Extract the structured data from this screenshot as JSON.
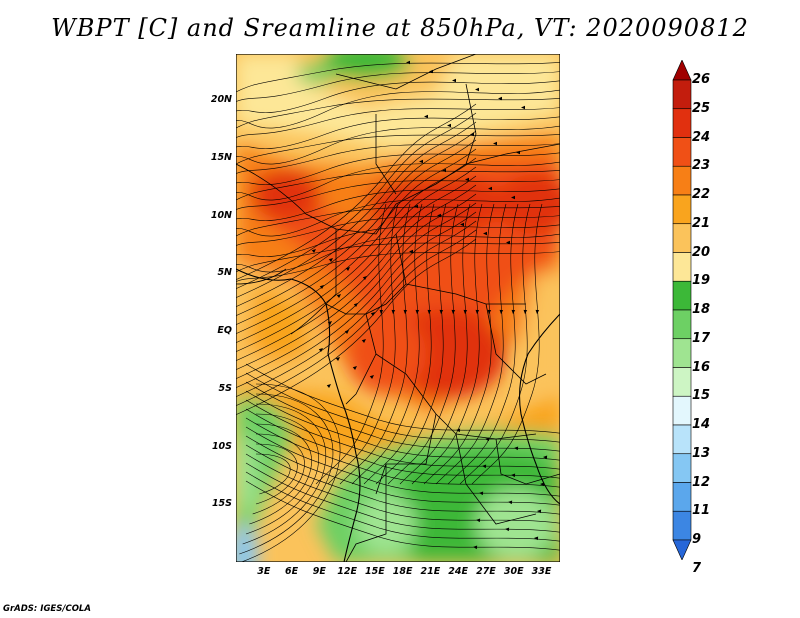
{
  "title": "WBPT [C] and Sreamline at 850hPa, VT: 2020090812",
  "credit": "GrADS: IGES/COLA",
  "map": {
    "lon_range": [
      0,
      35
    ],
    "lat_range": [
      -20,
      24
    ],
    "lat_ticks": [
      "20N",
      "15N",
      "10N",
      "5N",
      "EQ",
      "5S",
      "10S",
      "15S"
    ],
    "lon_ticks": [
      "3E",
      "6E",
      "9E",
      "12E",
      "15E",
      "18E",
      "21E",
      "24E",
      "27E",
      "30E",
      "33E"
    ],
    "field": "Wet-bulb potential temperature at 850hPa with streamlines",
    "regions": [
      {
        "zone": "northern Sahel",
        "wbpt_c": 20
      },
      {
        "zone": "central belt 5N-15N",
        "wbpt_c": 23
      },
      {
        "zone": "Congo basin",
        "wbpt_c": 23
      },
      {
        "zone": "southern Africa",
        "wbpt_c": 17
      }
    ]
  },
  "colorbar": {
    "labels": [
      "26",
      "25",
      "24",
      "23",
      "22",
      "21",
      "20",
      "19",
      "18",
      "17",
      "16",
      "15",
      "14",
      "13",
      "12",
      "11",
      "9",
      "7"
    ],
    "colors": [
      "#a00000",
      "#c31d0d",
      "#e1300f",
      "#f05016",
      "#f77f16",
      "#f9a41e",
      "#fbc35b",
      "#fde797",
      "#3cb838",
      "#6dd064",
      "#9fe491",
      "#cdf5c4",
      "#e3f7fd",
      "#b8e3fa",
      "#85c7f3",
      "#5ba7ec",
      "#3c86e3",
      "#2666d8"
    ]
  }
}
